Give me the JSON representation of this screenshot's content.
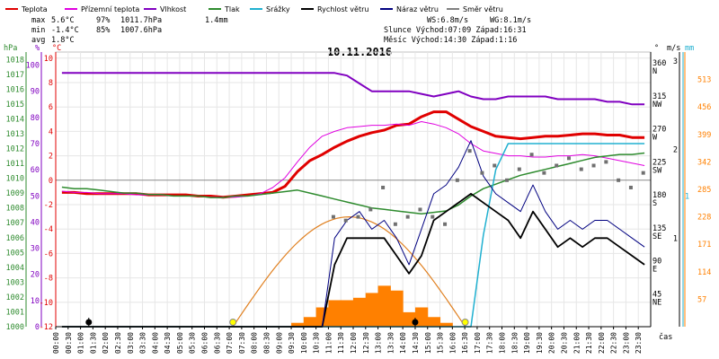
{
  "legend": [
    {
      "label": "Teplota",
      "color": "#e00000"
    },
    {
      "label": "Přízemní teplota",
      "color": "#e000e0"
    },
    {
      "label": "Vlhkost",
      "color": "#8000c0"
    },
    {
      "label": "Tlak",
      "color": "#2e8b2e"
    },
    {
      "label": "Srážky",
      "color": "#20b0d0"
    },
    {
      "label": "Rychlost větru",
      "color": "#000000"
    },
    {
      "label": "Náraz větru",
      "color": "#000080"
    },
    {
      "label": "Směr větru",
      "color": "#808080"
    }
  ],
  "stats": {
    "max_label": "max",
    "max_temp": "5.6°C",
    "max_hum": "97%",
    "max_press": "1011.7hPa",
    "rain": "1.4mm",
    "min_label": "min",
    "min_temp": "-1.4°C",
    "min_hum": "85%",
    "min_press": "1007.6hPa",
    "avg_label": "avg",
    "avg_temp": "1.8°C",
    "ws": "WS:6.8m/s",
    "wg": "WG:8.1m/s",
    "sun": "Slunce Východ:07:09  Západ:16:31",
    "moon": "Měsíc  Východ:14:30  Západ:1:16"
  },
  "chart_data": {
    "type": "line",
    "title": "10.11.2016",
    "xlabel": "čas",
    "x": [
      "00:00",
      "00:30",
      "01:00",
      "01:30",
      "02:00",
      "02:30",
      "03:00",
      "03:30",
      "04:00",
      "04:30",
      "05:00",
      "05:30",
      "06:00",
      "06:30",
      "07:00",
      "07:30",
      "08:00",
      "08:30",
      "09:00",
      "09:30",
      "10:00",
      "10:30",
      "11:00",
      "11:30",
      "12:00",
      "12:30",
      "13:00",
      "13:30",
      "14:00",
      "14:30",
      "15:00",
      "15:30",
      "16:00",
      "16:30",
      "17:00",
      "17:30",
      "18:00",
      "18:30",
      "19:00",
      "19:30",
      "20:00",
      "20:30",
      "21:00",
      "21:30",
      "22:00",
      "22:30",
      "23:00",
      "23:30"
    ],
    "axes": {
      "pressure": {
        "label": "hPa",
        "ticks": [
          "1018",
          "1017",
          "1016",
          "1015",
          "1014",
          "1013",
          "1012",
          "1011",
          "1010",
          "1009",
          "1008",
          "1007",
          "1006",
          "1005",
          "1004",
          "1003",
          "1002",
          "1001",
          "1000"
        ],
        "range": [
          1000,
          1018.5
        ],
        "color": "#2e8b2e"
      },
      "humidity": {
        "label": "%",
        "ticks": [
          "100",
          "90",
          "80",
          "70",
          "60",
          "50",
          "40",
          "30",
          "20",
          "10",
          "0"
        ],
        "range": [
          0,
          105
        ],
        "color": "#8000c0"
      },
      "temperature": {
        "label": "°C",
        "ticks": [
          "10",
          "8",
          "6",
          "4",
          "2",
          "0",
          "-2",
          "-4",
          "-6",
          "-8",
          "-10",
          "-12"
        ],
        "range": [
          -12,
          10.5
        ],
        "color": "#e00000"
      },
      "direction": {
        "label": "°",
        "ticks": [
          "360",
          "315",
          "270",
          "225",
          "180",
          "135",
          "90",
          "45"
        ],
        "letters": [
          "N",
          "NW",
          "W",
          "SW",
          "S",
          "SE",
          "E",
          "NE"
        ],
        "range": [
          0,
          375
        ],
        "color": "#000000"
      },
      "wind": {
        "label": "m/s",
        "ticks": [
          "3",
          "2",
          "1"
        ],
        "range": [
          0,
          3.1
        ],
        "color": "#000000"
      },
      "rain": {
        "label": "mm",
        "ticks": [
          "1"
        ],
        "range": [
          0,
          2.1
        ],
        "color": "#20b0d0"
      },
      "radiation": {
        "ticks": [
          "513",
          "456",
          "399",
          "342",
          "285",
          "228",
          "171",
          "114",
          "57"
        ],
        "range": [
          0,
          570
        ],
        "color": "#ff8000"
      }
    },
    "series": [
      {
        "name": "Teplota",
        "axis": "temperature",
        "values": [
          -1.0,
          -1.0,
          -1.1,
          -1.1,
          -1.1,
          -1.1,
          -1.1,
          -1.2,
          -1.2,
          -1.2,
          -1.2,
          -1.3,
          -1.3,
          -1.4,
          -1.3,
          -1.2,
          -1.1,
          -1.0,
          -0.5,
          0.7,
          1.6,
          2.1,
          2.7,
          3.2,
          3.6,
          3.9,
          4.1,
          4.5,
          4.6,
          5.2,
          5.6,
          5.6,
          5.0,
          4.4,
          4.0,
          3.6,
          3.5,
          3.4,
          3.5,
          3.6,
          3.6,
          3.7,
          3.8,
          3.8,
          3.7,
          3.7,
          3.5,
          3.5
        ]
      },
      {
        "name": "Přízemní teplota",
        "axis": "temperature",
        "values": [
          -0.9,
          -1.0,
          -1.0,
          -1.1,
          -1.1,
          -1.1,
          -1.2,
          -1.2,
          -1.2,
          -1.3,
          -1.3,
          -1.3,
          -1.4,
          -1.4,
          -1.4,
          -1.3,
          -1.1,
          -0.6,
          0.2,
          1.5,
          2.7,
          3.6,
          4.0,
          4.3,
          4.4,
          4.5,
          4.5,
          4.6,
          4.5,
          4.8,
          4.6,
          4.3,
          3.8,
          3.0,
          2.4,
          2.2,
          2.0,
          2.0,
          1.9,
          1.9,
          2.0,
          2.0,
          2.1,
          2.0,
          1.8,
          1.6,
          1.4,
          1.2
        ]
      },
      {
        "name": "Vlhkost",
        "axis": "humidity",
        "values": [
          97,
          97,
          97,
          97,
          97,
          97,
          97,
          97,
          97,
          97,
          97,
          97,
          97,
          97,
          97,
          97,
          97,
          97,
          97,
          97,
          97,
          97,
          97,
          96,
          93,
          90,
          90,
          90,
          90,
          89,
          88,
          89,
          90,
          88,
          87,
          87,
          88,
          88,
          88,
          88,
          87,
          87,
          87,
          87,
          86,
          86,
          85,
          85
        ]
      },
      {
        "name": "Tlak",
        "axis": "pressure",
        "values": [
          1009.4,
          1009.3,
          1009.3,
          1009.2,
          1009.1,
          1009.0,
          1009.0,
          1008.9,
          1008.9,
          1008.8,
          1008.8,
          1008.8,
          1008.7,
          1008.7,
          1008.8,
          1008.8,
          1008.9,
          1009.0,
          1009.1,
          1009.2,
          1009.0,
          1008.8,
          1008.6,
          1008.4,
          1008.2,
          1008.0,
          1007.9,
          1007.8,
          1007.7,
          1007.6,
          1007.7,
          1007.8,
          1008.2,
          1008.8,
          1009.3,
          1009.6,
          1009.9,
          1010.2,
          1010.4,
          1010.6,
          1010.8,
          1011.0,
          1011.2,
          1011.4,
          1011.5,
          1011.6,
          1011.6,
          1011.7
        ]
      },
      {
        "name": "Srážky",
        "axis": "rain",
        "values": [
          0,
          0,
          0,
          0,
          0,
          0,
          0,
          0,
          0,
          0,
          0,
          0,
          0,
          0,
          0,
          0,
          0,
          0,
          0,
          0,
          0,
          0,
          0,
          0,
          0,
          0,
          0,
          0,
          0,
          0,
          0,
          0,
          0,
          0,
          0.7,
          1.2,
          1.4,
          1.4,
          1.4,
          1.4,
          1.4,
          1.4,
          1.4,
          1.4,
          1.4,
          1.4,
          1.4,
          1.4
        ]
      },
      {
        "name": "Rychlost větru",
        "axis": "wind",
        "values": [
          0,
          0,
          0,
          0,
          0,
          0,
          0,
          0,
          0,
          0,
          0,
          0,
          0,
          0,
          0,
          0,
          0,
          0,
          0,
          0,
          0,
          0,
          0.7,
          1.0,
          1.0,
          1.0,
          1.0,
          0.8,
          0.6,
          0.8,
          1.2,
          1.3,
          1.4,
          1.5,
          1.4,
          1.3,
          1.2,
          1.0,
          1.3,
          1.1,
          0.9,
          1.0,
          0.9,
          1.0,
          1.0,
          0.9,
          0.8,
          0.7
        ]
      },
      {
        "name": "Náraz větru",
        "axis": "wind",
        "values": [
          0,
          0,
          0,
          0,
          0,
          0,
          0,
          0,
          0,
          0,
          0,
          0,
          0,
          0,
          0,
          0,
          0,
          0,
          0,
          0,
          0,
          0,
          1.0,
          1.2,
          1.3,
          1.1,
          1.2,
          1.0,
          0.7,
          1.1,
          1.5,
          1.6,
          1.8,
          2.1,
          1.7,
          1.5,
          1.4,
          1.3,
          1.6,
          1.3,
          1.1,
          1.2,
          1.1,
          1.2,
          1.2,
          1.1,
          1.0,
          0.9
        ]
      },
      {
        "name": "Směr větru",
        "axis": "direction",
        "values": [
          null,
          null,
          null,
          null,
          null,
          null,
          null,
          null,
          null,
          null,
          null,
          null,
          null,
          null,
          null,
          null,
          null,
          null,
          null,
          null,
          null,
          null,
          150,
          145,
          150,
          160,
          190,
          140,
          150,
          160,
          150,
          140,
          200,
          240,
          210,
          220,
          200,
          215,
          235,
          210,
          220,
          230,
          215,
          220,
          225,
          200,
          190,
          210
        ]
      }
    ],
    "radiation": {
      "values": [
        0,
        0,
        0,
        0,
        0,
        0,
        0,
        0,
        0,
        0,
        0,
        0,
        0,
        0,
        0,
        0,
        0,
        0,
        0,
        8,
        20,
        40,
        55,
        55,
        60,
        70,
        85,
        75,
        30,
        40,
        20,
        8,
        0,
        0,
        0,
        0,
        0,
        0,
        0,
        0,
        0,
        0,
        0,
        0,
        0,
        0,
        0,
        0
      ]
    },
    "sun_curve": {
      "rise": "07:09",
      "set": "16:31"
    },
    "markers": [
      {
        "time": "01:20",
        "type": "moon"
      },
      {
        "time": "07:09",
        "type": "sunrise"
      },
      {
        "time": "14:30",
        "type": "moon"
      },
      {
        "time": "16:31",
        "type": "sunset"
      }
    ]
  }
}
